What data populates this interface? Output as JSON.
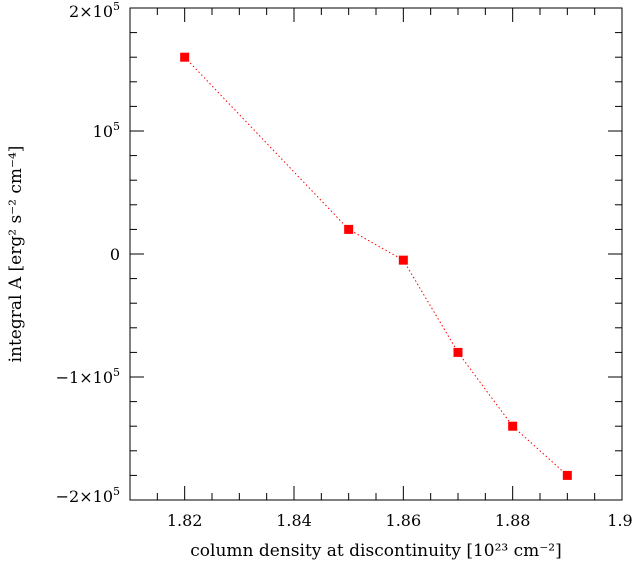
{
  "chart_data": {
    "type": "scatter",
    "title": "",
    "xlabel": "column density at discontinuity [10²³ cm⁻²]",
    "ylabel": "integral A [erg² s⁻² cm⁻⁴]",
    "xlim": [
      1.81,
      1.9
    ],
    "ylim": [
      -200000,
      200000
    ],
    "x_ticks": [
      {
        "value": 1.82,
        "label": "1.82"
      },
      {
        "value": 1.84,
        "label": "1.84"
      },
      {
        "value": 1.86,
        "label": "1.86"
      },
      {
        "value": 1.88,
        "label": "1.88"
      },
      {
        "value": 1.9,
        "label": "1.9"
      }
    ],
    "x_minor_step": 0.005,
    "y_ticks": [
      {
        "value": 200000,
        "base": "2×10",
        "exp": "5"
      },
      {
        "value": 100000,
        "base": "10",
        "exp": "5"
      },
      {
        "value": 0,
        "base": "0",
        "exp": ""
      },
      {
        "value": -100000,
        "base": "−1×10",
        "exp": "5"
      },
      {
        "value": -200000,
        "base": "−2×10",
        "exp": "5"
      }
    ],
    "y_minor_step": 20000,
    "grid": false,
    "series": [
      {
        "color": "#ff0000",
        "marker": "square",
        "line_style": "dotted",
        "points": [
          {
            "x": 1.82,
            "y": 160000
          },
          {
            "x": 1.85,
            "y": 20000
          },
          {
            "x": 1.86,
            "y": -5000
          },
          {
            "x": 1.87,
            "y": -80000
          },
          {
            "x": 1.88,
            "y": -140000
          },
          {
            "x": 1.89,
            "y": -180000
          }
        ]
      }
    ]
  }
}
